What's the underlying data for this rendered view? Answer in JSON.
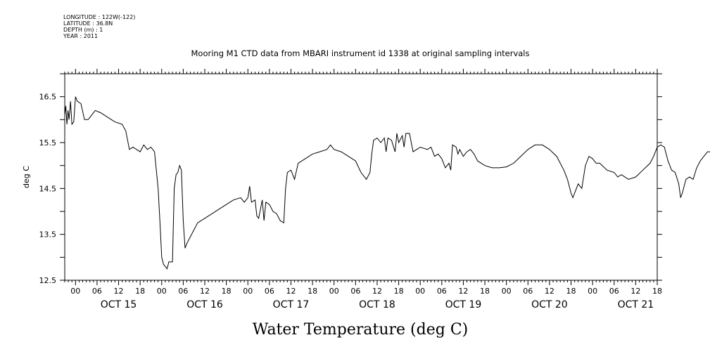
{
  "info": {
    "longitude": "LONGITUDE : 122W(-122)",
    "latitude": "LATITUDE : 36.8N",
    "depth": "DEPTH (m) : 1",
    "year": "YEAR : 2011"
  },
  "chart_data": {
    "type": "line",
    "title": "Mooring M1 CTD data from MBARI instrument id 1338 at original sampling intervals",
    "xlabel": "Water Temperature (deg C)",
    "ylabel": "deg C",
    "ylim": [
      12.5,
      17.0
    ],
    "xlim_hours": [
      -3,
      18
    ],
    "x_unit": "hours after 00:00 on the first labeled day (OCT 15)",
    "y_ticks": [
      12.5,
      13.0,
      13.5,
      14.0,
      14.5,
      15.0,
      15.5,
      16.0,
      16.5,
      17.0
    ],
    "y_tick_labels": [
      "12.5",
      "",
      "13.5",
      "",
      "14.5",
      "",
      "15.5",
      "",
      "16.5",
      ""
    ],
    "hour_tick_labels": [
      "00",
      "06",
      "12",
      "18"
    ],
    "day_labels": [
      "OCT 15",
      "OCT 16",
      "OCT 17",
      "OCT 18",
      "OCT 19",
      "OCT 20",
      "OCT 21"
    ],
    "grid": false,
    "series": [
      {
        "name": "",
        "points": [
          [
            -3.0,
            16.1
          ],
          [
            -2.7,
            16.3
          ],
          [
            -2.4,
            15.9
          ],
          [
            -2.1,
            16.2
          ],
          [
            -1.8,
            16.0
          ],
          [
            -1.4,
            16.4
          ],
          [
            -1.0,
            15.9
          ],
          [
            -0.5,
            15.95
          ],
          [
            0.0,
            16.5
          ],
          [
            0.5,
            16.4
          ],
          [
            1.5,
            16.35
          ],
          [
            2.5,
            16.0
          ],
          [
            3.5,
            16.0
          ],
          [
            4.5,
            16.1
          ],
          [
            5.5,
            16.2
          ],
          [
            7.0,
            16.15
          ],
          [
            9.0,
            16.05
          ],
          [
            11.0,
            15.95
          ],
          [
            13.0,
            15.9
          ],
          [
            14.0,
            15.75
          ],
          [
            15.0,
            15.35
          ],
          [
            16.0,
            15.4
          ],
          [
            17.0,
            15.35
          ],
          [
            18.0,
            15.3
          ],
          [
            19.0,
            15.45
          ],
          [
            20.0,
            15.35
          ],
          [
            21.0,
            15.4
          ],
          [
            22.0,
            15.3
          ],
          [
            23.0,
            14.5
          ],
          [
            23.5,
            13.8
          ],
          [
            24.0,
            13.0
          ],
          [
            24.5,
            12.85
          ],
          [
            25.0,
            12.8
          ],
          [
            25.5,
            12.75
          ],
          [
            26.0,
            12.9
          ],
          [
            27.0,
            12.9
          ],
          [
            27.5,
            14.5
          ],
          [
            28.0,
            14.8
          ],
          [
            28.5,
            14.85
          ],
          [
            29.0,
            15.0
          ],
          [
            29.5,
            14.9
          ],
          [
            30.0,
            13.8
          ],
          [
            30.5,
            13.2
          ],
          [
            31.0,
            13.3
          ],
          [
            32.0,
            13.45
          ],
          [
            33.0,
            13.6
          ],
          [
            34.0,
            13.75
          ],
          [
            35.0,
            13.8
          ],
          [
            36.0,
            13.85
          ],
          [
            38.0,
            13.95
          ],
          [
            40.0,
            14.05
          ],
          [
            42.0,
            14.15
          ],
          [
            44.0,
            14.25
          ],
          [
            46.0,
            14.3
          ],
          [
            47.0,
            14.2
          ],
          [
            48.0,
            14.3
          ],
          [
            48.5,
            14.55
          ],
          [
            49.0,
            14.2
          ],
          [
            50.0,
            14.25
          ],
          [
            50.5,
            13.9
          ],
          [
            51.0,
            13.85
          ],
          [
            52.0,
            14.25
          ],
          [
            52.5,
            13.8
          ],
          [
            53.0,
            14.2
          ],
          [
            54.0,
            14.15
          ],
          [
            55.0,
            14.0
          ],
          [
            56.0,
            13.95
          ],
          [
            57.0,
            13.8
          ],
          [
            58.0,
            13.75
          ],
          [
            58.5,
            14.5
          ],
          [
            59.0,
            14.85
          ],
          [
            60.0,
            14.9
          ],
          [
            61.0,
            14.7
          ],
          [
            62.0,
            15.05
          ],
          [
            64.0,
            15.15
          ],
          [
            66.0,
            15.25
          ],
          [
            68.0,
            15.3
          ],
          [
            70.0,
            15.35
          ],
          [
            71.0,
            15.45
          ],
          [
            72.0,
            15.35
          ],
          [
            74.0,
            15.3
          ],
          [
            76.0,
            15.2
          ],
          [
            78.0,
            15.1
          ],
          [
            79.5,
            14.85
          ],
          [
            81.0,
            14.7
          ],
          [
            82.0,
            14.85
          ],
          [
            82.5,
            15.25
          ],
          [
            83.0,
            15.55
          ],
          [
            84.0,
            15.6
          ],
          [
            85.0,
            15.5
          ],
          [
            86.0,
            15.6
          ],
          [
            86.5,
            15.3
          ],
          [
            87.0,
            15.6
          ],
          [
            88.0,
            15.55
          ],
          [
            89.0,
            15.3
          ],
          [
            89.5,
            15.7
          ],
          [
            90.0,
            15.5
          ],
          [
            91.0,
            15.65
          ],
          [
            91.5,
            15.4
          ],
          [
            92.0,
            15.7
          ],
          [
            93.0,
            15.7
          ],
          [
            94.0,
            15.3
          ],
          [
            95.0,
            15.35
          ],
          [
            96.0,
            15.4
          ],
          [
            98.0,
            15.35
          ],
          [
            99.0,
            15.4
          ],
          [
            100.0,
            15.2
          ],
          [
            101.0,
            15.25
          ],
          [
            102.0,
            15.15
          ],
          [
            103.0,
            14.95
          ],
          [
            104.0,
            15.05
          ],
          [
            104.5,
            14.9
          ],
          [
            105.0,
            15.45
          ],
          [
            106.0,
            15.4
          ],
          [
            106.5,
            15.25
          ],
          [
            107.0,
            15.35
          ],
          [
            108.0,
            15.2
          ],
          [
            109.0,
            15.3
          ],
          [
            110.0,
            15.35
          ],
          [
            111.0,
            15.25
          ],
          [
            112.0,
            15.1
          ],
          [
            113.0,
            15.05
          ],
          [
            114.0,
            15.0
          ],
          [
            116.0,
            14.95
          ],
          [
            118.0,
            14.95
          ],
          [
            120.0,
            14.97
          ],
          [
            122.0,
            15.05
          ],
          [
            124.0,
            15.2
          ],
          [
            126.0,
            15.35
          ],
          [
            128.0,
            15.45
          ],
          [
            130.0,
            15.45
          ],
          [
            132.0,
            15.35
          ],
          [
            134.0,
            15.2
          ],
          [
            136.0,
            14.9
          ],
          [
            137.0,
            14.7
          ],
          [
            138.0,
            14.4
          ],
          [
            138.5,
            14.3
          ],
          [
            139.0,
            14.4
          ],
          [
            140.0,
            14.6
          ],
          [
            141.0,
            14.5
          ],
          [
            142.0,
            15.0
          ],
          [
            143.0,
            15.2
          ],
          [
            144.0,
            15.15
          ],
          [
            145.0,
            15.05
          ],
          [
            146.0,
            15.05
          ],
          [
            148.0,
            14.9
          ],
          [
            150.0,
            14.85
          ],
          [
            151.0,
            14.75
          ],
          [
            152.0,
            14.8
          ],
          [
            154.0,
            14.7
          ],
          [
            156.0,
            14.75
          ],
          [
            158.0,
            14.9
          ],
          [
            160.0,
            15.05
          ],
          [
            161.0,
            15.2
          ],
          [
            162.0,
            15.4
          ],
          [
            163.0,
            15.45
          ],
          [
            164.0,
            15.4
          ],
          [
            165.0,
            15.1
          ],
          [
            166.0,
            14.9
          ],
          [
            167.0,
            14.85
          ],
          [
            168.0,
            14.6
          ],
          [
            168.5,
            14.3
          ],
          [
            169.0,
            14.4
          ],
          [
            170.0,
            14.7
          ],
          [
            171.0,
            14.75
          ],
          [
            172.0,
            14.7
          ],
          [
            173.0,
            14.95
          ],
          [
            174.0,
            15.1
          ],
          [
            175.0,
            15.2
          ],
          [
            176.0,
            15.3
          ],
          [
            178.0,
            15.3
          ],
          [
            180.0,
            15.25
          ],
          [
            182.0,
            15.2
          ],
          [
            183.0,
            15.2
          ]
        ]
      }
    ]
  }
}
